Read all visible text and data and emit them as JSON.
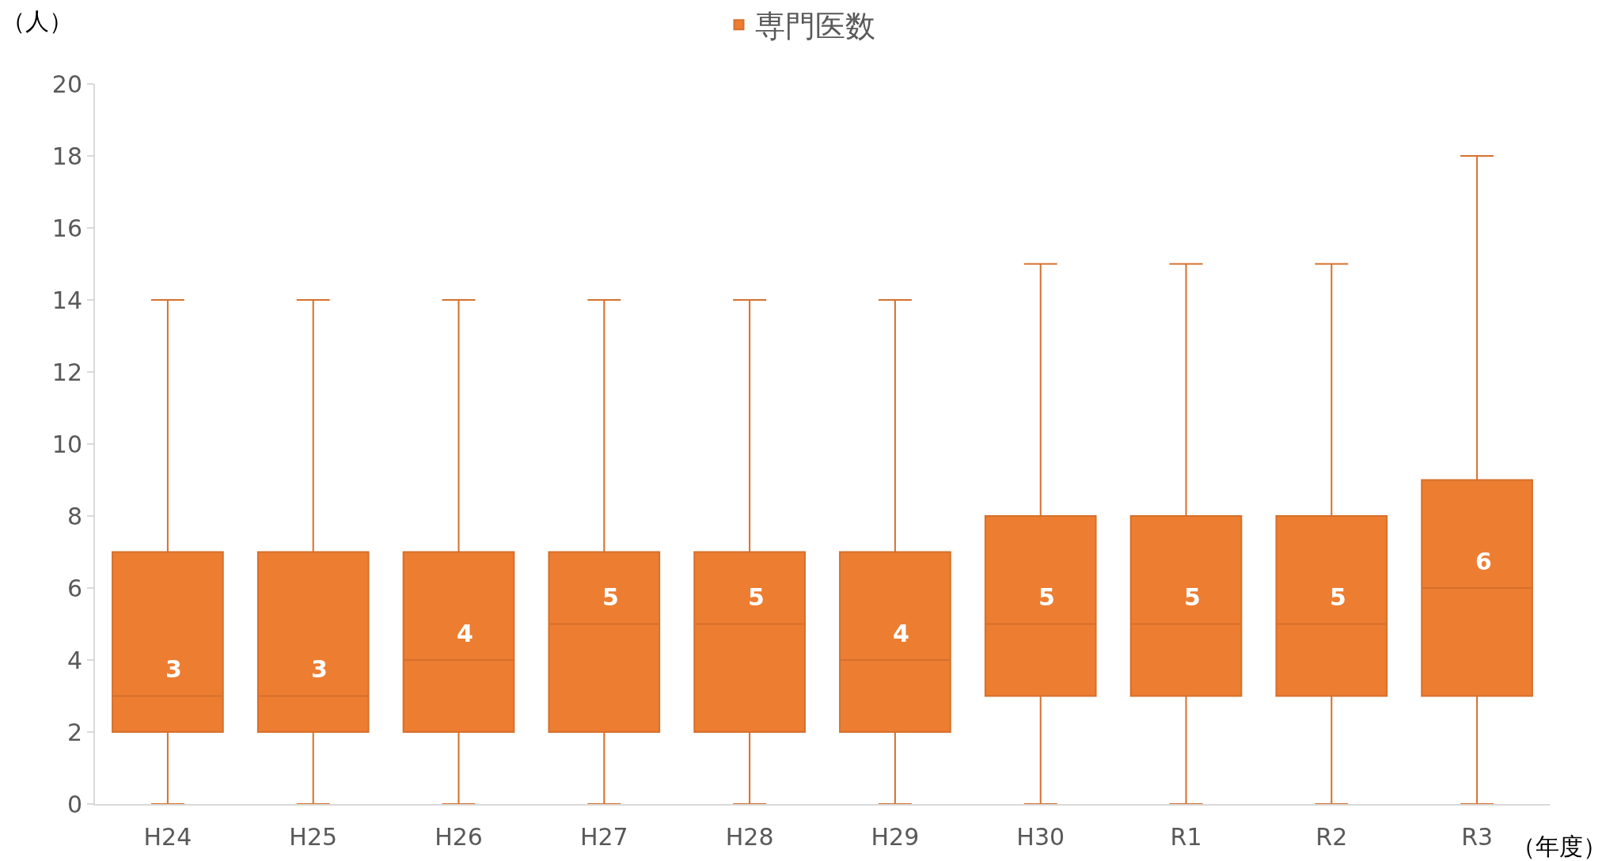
{
  "chart_data": {
    "type": "box",
    "categories": [
      "H24",
      "H25",
      "H26",
      "H27",
      "H28",
      "H29",
      "H30",
      "R1",
      "R2",
      "R3"
    ],
    "series": [
      {
        "name": "専門医数",
        "color": "#ed7d31",
        "boxes": [
          {
            "low": 0,
            "q1": 2,
            "median": 3,
            "q3": 7,
            "high": 14
          },
          {
            "low": 0,
            "q1": 2,
            "median": 3,
            "q3": 7,
            "high": 14
          },
          {
            "low": 0,
            "q1": 2,
            "median": 4,
            "q3": 7,
            "high": 14
          },
          {
            "low": 0,
            "q1": 2,
            "median": 5,
            "q3": 7,
            "high": 14
          },
          {
            "low": 0,
            "q1": 2,
            "median": 5,
            "q3": 7,
            "high": 14
          },
          {
            "low": 0,
            "q1": 2,
            "median": 4,
            "q3": 7,
            "high": 14
          },
          {
            "low": 0,
            "q1": 3,
            "median": 5,
            "q3": 8,
            "high": 15
          },
          {
            "low": 0,
            "q1": 3,
            "median": 5,
            "q3": 8,
            "high": 15
          },
          {
            "low": 0,
            "q1": 3,
            "median": 5,
            "q3": 8,
            "high": 15
          },
          {
            "low": 0,
            "q1": 3,
            "median": 6,
            "q3": 9,
            "high": 18
          }
        ],
        "value_labels": [
          "3",
          "3",
          "4",
          "5",
          "5",
          "4",
          "5",
          "5",
          "5",
          "6"
        ]
      }
    ],
    "ylabel": "（人）",
    "xlabel": "（年度）",
    "ylim": [
      0,
      20
    ],
    "yticks": [
      0,
      2,
      4,
      6,
      8,
      10,
      12,
      14,
      16,
      18,
      20
    ],
    "grid": false,
    "legend": "top"
  }
}
